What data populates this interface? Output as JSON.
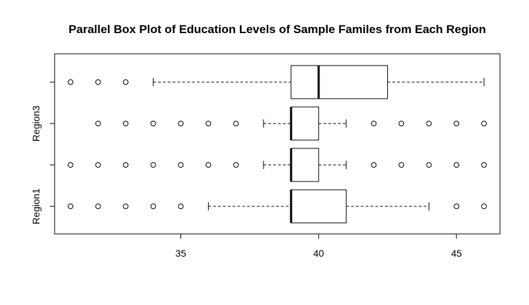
{
  "chart_data": {
    "type": "boxplot",
    "orientation": "horizontal",
    "title": "Parallel Box Plot of Education Levels of Sample Familes from Each Region",
    "xlabel": "",
    "ylabel": "",
    "xlim": [
      30.6,
      46.6
    ],
    "x_ticks": [
      35,
      40,
      45
    ],
    "grid": false,
    "legend": "none",
    "categories": [
      "Region1",
      "",
      "Region3",
      ""
    ],
    "series": [
      {
        "name": "Region1",
        "whisker_low": 36,
        "q1": 39,
        "median": 39,
        "q3": 41,
        "whisker_high": 44,
        "outliers": [
          31,
          32,
          33,
          34,
          35,
          45,
          46
        ]
      },
      {
        "name": "",
        "whisker_low": 38,
        "q1": 39,
        "median": 39,
        "q3": 40,
        "whisker_high": 41,
        "outliers": [
          31,
          32,
          33,
          34,
          35,
          36,
          37,
          42,
          43,
          44,
          45,
          46
        ]
      },
      {
        "name": "Region3",
        "whisker_low": 38,
        "q1": 39,
        "median": 39,
        "q3": 40,
        "whisker_high": 41,
        "outliers": [
          32,
          33,
          34,
          35,
          36,
          37,
          42,
          43,
          44,
          45,
          46
        ]
      },
      {
        "name": "",
        "whisker_low": 34,
        "q1": 39,
        "median": 40,
        "q3": 42.5,
        "whisker_high": 46,
        "outliers": [
          31,
          32,
          33
        ]
      }
    ],
    "colors": {
      "box_fill": "#ffffff",
      "stroke": "#000000"
    }
  }
}
